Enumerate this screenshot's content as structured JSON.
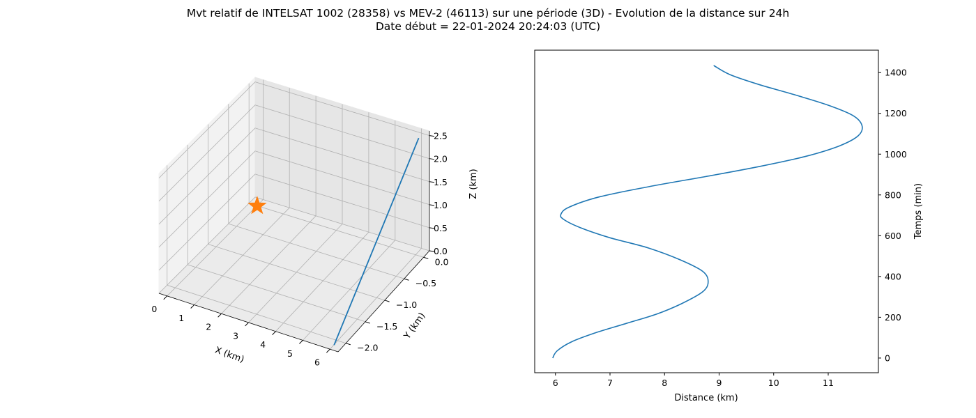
{
  "figure": {
    "title_line1": "Mvt relatif de INTELSAT 1002 (28358) vs MEV-2 (46113) sur une période (3D) - Evolution de la distance sur 24h",
    "title_line2": "Date début = 22-01-2024 20:24:03 (UTC)"
  },
  "colors": {
    "series": "#1f77b4",
    "marker": "#ff7f0e",
    "pane": "#f2f2f2",
    "grid": "#b0b0b0"
  },
  "chart_data": [
    {
      "type": "line3d",
      "title": "",
      "xlabel": "X (km)",
      "ylabel": "Y (km)",
      "zlabel": "Z (km)",
      "x_ticks": [
        "0",
        "1",
        "2",
        "3",
        "4",
        "5",
        "6"
      ],
      "y_ticks": [
        "0.0",
        "−0.5",
        "−1.0",
        "−1.5",
        "−2.0"
      ],
      "z_ticks": [
        "0.0",
        "0.5",
        "1.0",
        "1.5",
        "2.0",
        "2.5"
      ],
      "xlim": [
        -0.3,
        6.3
      ],
      "ylim": [
        -2.2,
        0.15
      ],
      "zlim": [
        0,
        2.6
      ],
      "grid": true,
      "series": [
        {
          "x": [
            6.0,
            5.8
          ],
          "y": [
            -2.1,
            0.1
          ],
          "z": [
            0.0,
            2.5
          ]
        }
      ],
      "markers": [
        {
          "shape": "star",
          "x": 0.0,
          "y": 0.0,
          "z": 0.0
        }
      ]
    },
    {
      "type": "line",
      "title": "",
      "xlabel": "Distance (km)",
      "ylabel": "Temps (min)",
      "x_ticks": [
        6,
        7,
        8,
        9,
        10,
        11
      ],
      "y_ticks": [
        0,
        200,
        400,
        600,
        800,
        1000,
        1200,
        1400
      ],
      "xlim": [
        5.62,
        11.92
      ],
      "ylim": [
        -72,
        1510
      ],
      "y_axis_side": "right",
      "grid": false,
      "series": [
        {
          "x": [
            5.95,
            6.03,
            6.3,
            6.75,
            7.3,
            7.85,
            8.3,
            8.7,
            8.8,
            8.7,
            8.3,
            7.7,
            7.0,
            6.45,
            6.15,
            6.1,
            6.25,
            6.8,
            7.7,
            8.75,
            9.75,
            10.6,
            11.2,
            11.55,
            11.62,
            11.45,
            11.0,
            10.4,
            9.75,
            9.2,
            8.9
          ],
          "y": [
            0,
            35,
            80,
            125,
            170,
            215,
            265,
            325,
            375,
            425,
            480,
            540,
            590,
            640,
            680,
            705,
            740,
            790,
            840,
            890,
            940,
            990,
            1040,
            1090,
            1140,
            1190,
            1240,
            1290,
            1340,
            1390,
            1435
          ]
        }
      ]
    }
  ]
}
